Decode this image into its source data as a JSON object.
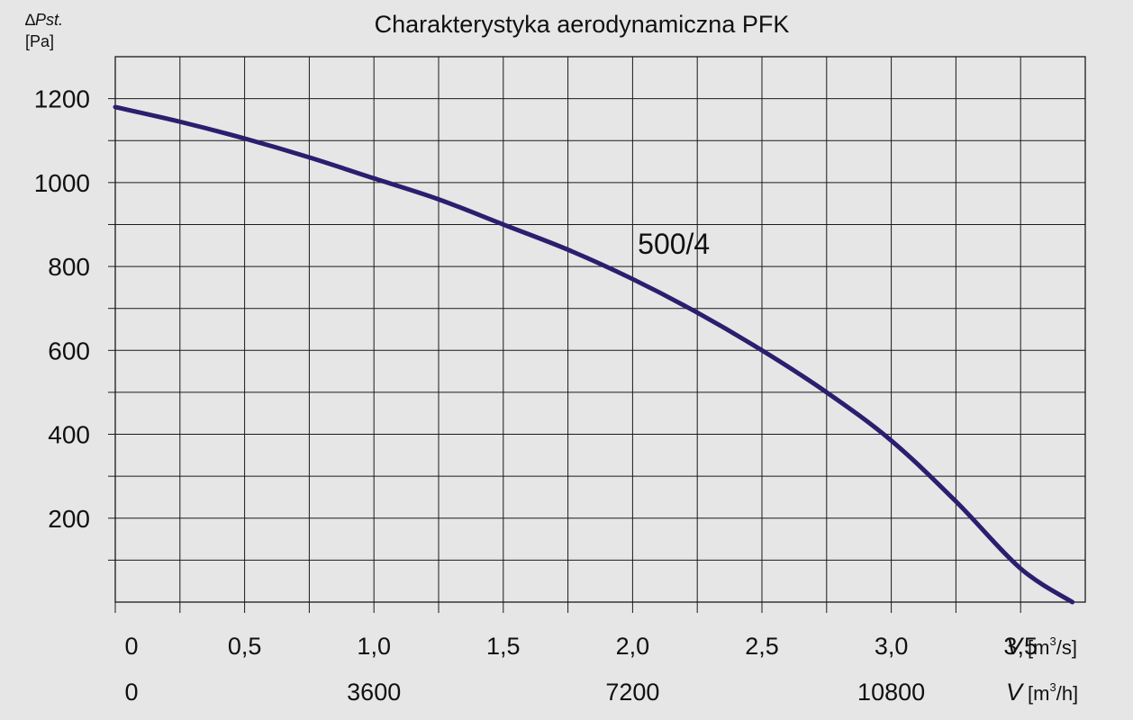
{
  "chart_data": {
    "type": "line",
    "title": "Charakterystyka aerodynamiczna PFK",
    "ylabel": {
      "symbol": "∆",
      "italic": "Pst.",
      "unit": "[Pa]"
    },
    "xlabel_primary": {
      "italic": "V",
      "unit_pre": "[m",
      "sup": "3",
      "unit_post": "/s]"
    },
    "xlabel_secondary": {
      "italic": "V",
      "unit_pre": "[m",
      "sup": "3",
      "unit_post": "/h]"
    },
    "xlim": [
      0,
      3.75
    ],
    "ylim": [
      0,
      1300
    ],
    "yticks": [
      200,
      400,
      600,
      800,
      1000,
      1200
    ],
    "ytick_labels": [
      "200",
      "400",
      "600",
      "800",
      "1000",
      "1200"
    ],
    "xticks": [
      0,
      0.5,
      1.0,
      1.5,
      2.0,
      2.5,
      3.0,
      3.5
    ],
    "xtick_labels": [
      "0",
      "0,5",
      "1,0",
      "1,5",
      "2,0",
      "2,5",
      "3,0",
      "3,5"
    ],
    "xticks_secondary": [
      0,
      1.0,
      2.0,
      3.0
    ],
    "xtick_labels_secondary": [
      "0",
      "3600",
      "7200",
      "10800"
    ],
    "grid": true,
    "series": [
      {
        "name": "500/4",
        "color": "#2a1f6e",
        "x": [
          0,
          0.25,
          0.5,
          0.75,
          1.0,
          1.25,
          1.5,
          1.75,
          2.0,
          2.25,
          2.5,
          2.75,
          3.0,
          3.25,
          3.5,
          3.7
        ],
        "y": [
          1180,
          1145,
          1105,
          1060,
          1010,
          960,
          900,
          840,
          770,
          690,
          600,
          500,
          385,
          240,
          80,
          0
        ]
      }
    ],
    "colors": {
      "background": "#e6e6e6",
      "grid": "#1a1a1a",
      "line": "#2a1f6e"
    }
  }
}
